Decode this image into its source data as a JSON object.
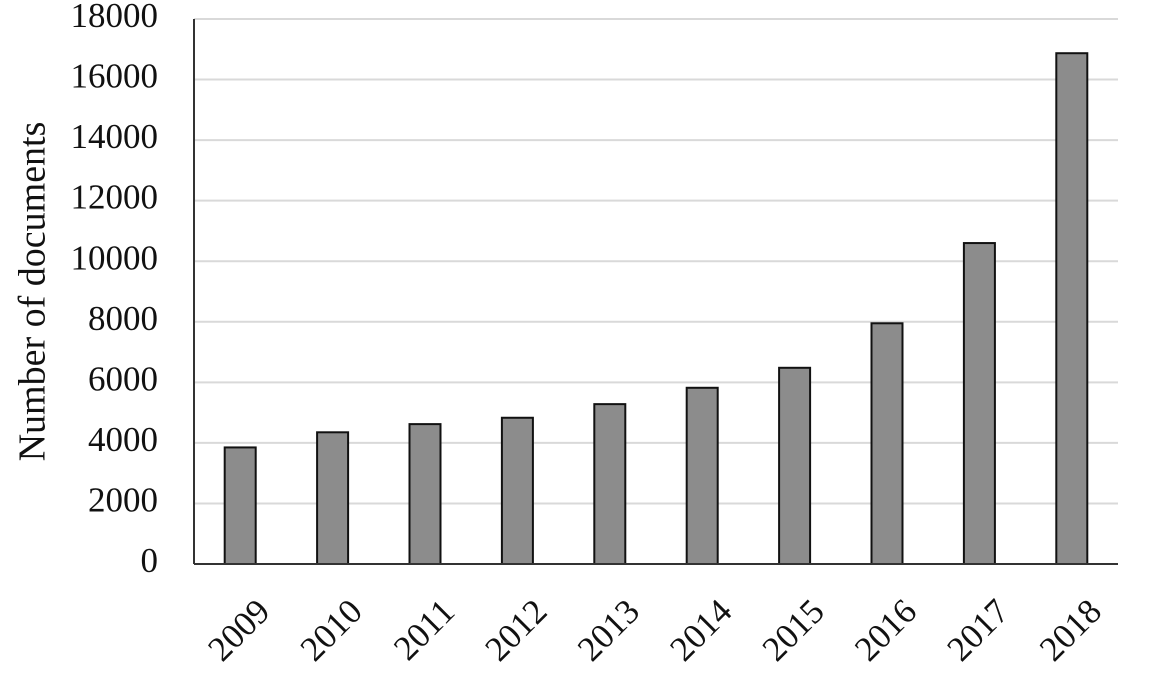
{
  "chart_data": {
    "type": "bar",
    "title": "",
    "xlabel": "",
    "ylabel": "Number of documents",
    "categories": [
      "2009",
      "2010",
      "2011",
      "2012",
      "2013",
      "2014",
      "2015",
      "2016",
      "2017",
      "2018"
    ],
    "values": [
      3850,
      4350,
      4620,
      4830,
      5280,
      5820,
      6480,
      7950,
      10600,
      16870
    ],
    "ylim": [
      0,
      18000
    ],
    "yticks": [
      0,
      2000,
      4000,
      6000,
      8000,
      10000,
      12000,
      14000,
      16000,
      18000
    ],
    "grid": "horizontal",
    "legend": "none",
    "colors": {
      "bar_fill": "#8c8c8c",
      "bar_stroke": "#111111",
      "grid": "#d9d9d9",
      "axis": "#333333"
    }
  }
}
